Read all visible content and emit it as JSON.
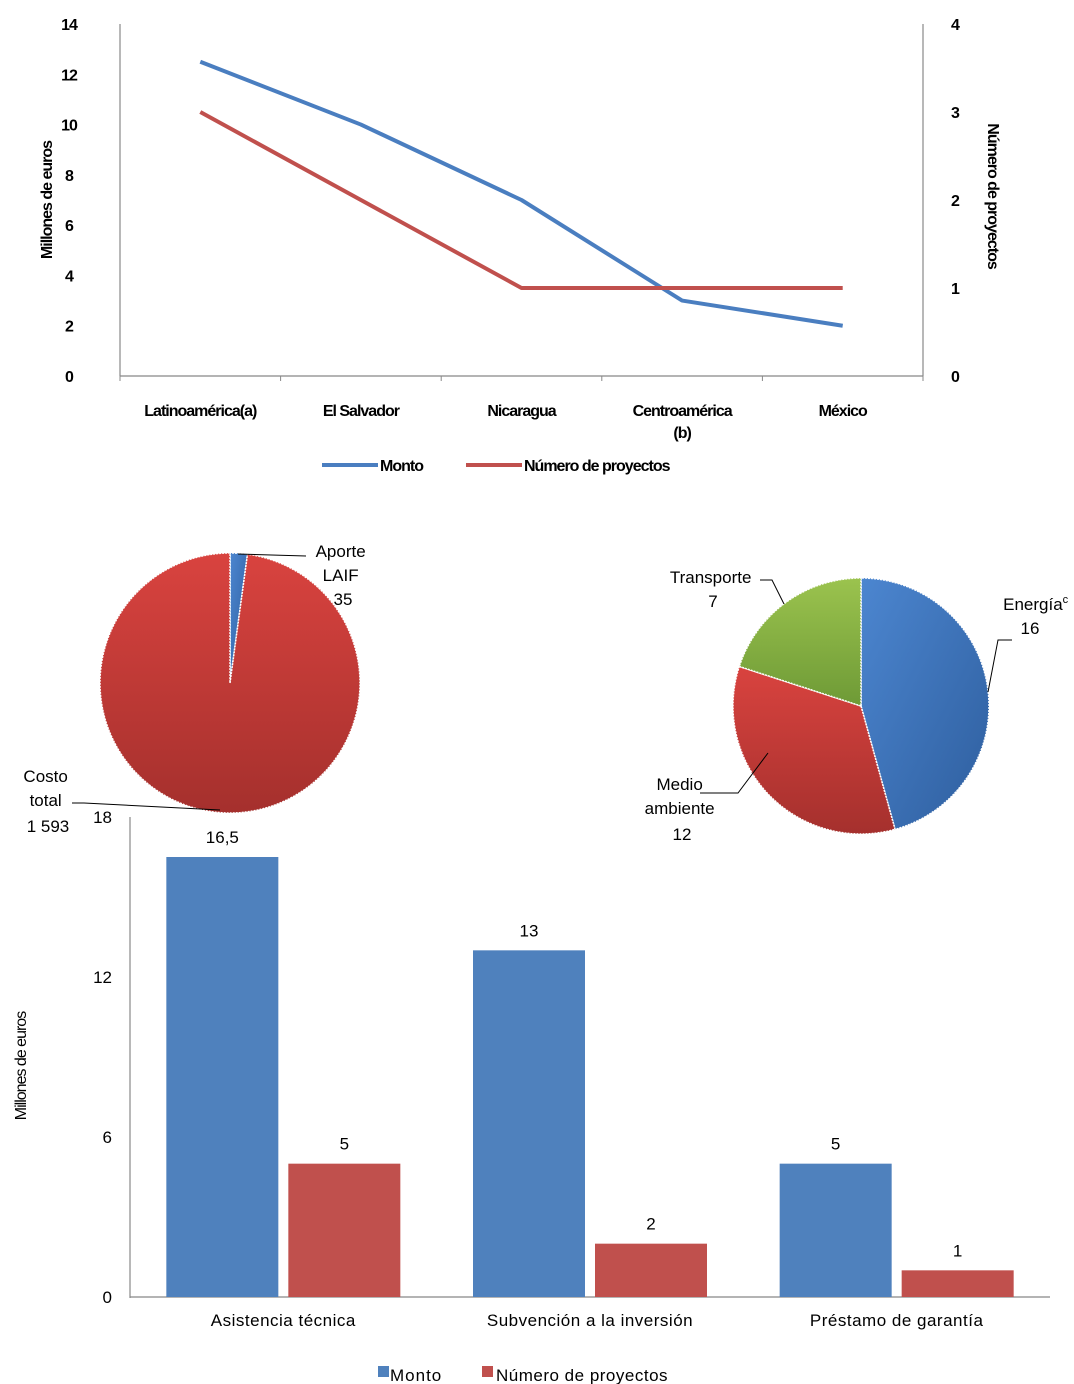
{
  "chart_data": [
    {
      "type": "line",
      "categories": [
        "Latinoamérica(a)",
        "El Salvador",
        "Nicaragua",
        "Centroamérica (b)",
        "México"
      ],
      "series": [
        {
          "name": "Monto",
          "axis": "left",
          "values": [
            12.5,
            10,
            7,
            3,
            2
          ],
          "color": "#4A7EC0"
        },
        {
          "name": "Número de proyectos",
          "axis": "right",
          "values": [
            3,
            2,
            1,
            1,
            1
          ],
          "color": "#C0504D"
        }
      ],
      "ylabel": "Millones de euros",
      "y2label": "Número de proyectos",
      "ylim": [
        0,
        14
      ],
      "y2lim": [
        0,
        4
      ],
      "yticks": [
        "0",
        "2",
        "4",
        "6",
        "8",
        "10",
        "12",
        "14"
      ],
      "y2ticks": [
        "0",
        "1",
        "2",
        "3",
        "4"
      ],
      "legend": "bottom"
    },
    {
      "type": "pie",
      "slices": [
        {
          "label": "Aporte LAIF",
          "value": 35,
          "value_text": "35",
          "color": "#4A7EC0"
        },
        {
          "label": "Costo total",
          "value": 1593,
          "value_text": "1 593",
          "color": "#C0504D"
        }
      ]
    },
    {
      "type": "pie",
      "slices": [
        {
          "label": "Energía",
          "note": "c",
          "value": 16,
          "value_text": "16",
          "color": "#4A7EC0"
        },
        {
          "label": "Medio ambiente",
          "value": 12,
          "value_text": "12",
          "color": "#C0504D"
        },
        {
          "label": "Transporte",
          "value": 7,
          "value_text": "7",
          "color": "#8CB04A"
        }
      ]
    },
    {
      "type": "bar",
      "categories": [
        "Asistencia técnica",
        "Subvención a la inversión",
        "Préstamo de garantía"
      ],
      "series": [
        {
          "name": "Monto",
          "values": [
            16.5,
            13,
            5
          ],
          "labels": [
            "16,5",
            "13",
            "5"
          ],
          "color": "#4F81BD"
        },
        {
          "name": "Número de proyectos",
          "values": [
            5,
            2,
            1
          ],
          "labels": [
            "5",
            "2",
            "1"
          ],
          "color": "#C0504D"
        }
      ],
      "ylabel": "Millones de euros",
      "ylim": [
        0,
        18
      ],
      "yticks": [
        "0",
        "6",
        "12",
        "18"
      ],
      "legend": "bottom"
    }
  ]
}
